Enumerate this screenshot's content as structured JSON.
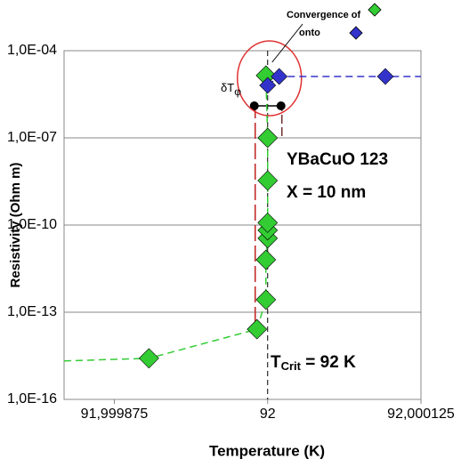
{
  "chart_data": {
    "type": "scatter",
    "xlabel": "Temperature (K)",
    "ylabel": "Resistivity (Ohm m)",
    "ylog": true,
    "grid": true,
    "xlim": [
      91.999834,
      92.000125
    ],
    "ylim": [
      1e-16,
      0.0001
    ],
    "xticks": [
      {
        "value": 91.999875,
        "label": "91,999875"
      },
      92,
      {
        "value": 92.000125,
        "label": "92,000125"
      }
    ],
    "yticks": [
      {
        "value": 1e-16,
        "label": "1,0E-16"
      },
      {
        "value": 1e-13,
        "label": "1,0E-13"
      },
      {
        "value": 1e-10,
        "label": "1,0E-10"
      },
      {
        "value": 1e-07,
        "label": "1,0E-07"
      },
      {
        "value": 0.0001,
        "label": "1,0E-04"
      }
    ],
    "series": [
      {
        "color": "#33cc33",
        "x": [
          91.9999032,
          91.9999913,
          91.9999986,
          91.9999986,
          92.0,
          92.0,
          92.0,
          92.0,
          92.0,
          91.9999986
        ],
        "values": [
          2.6e-15,
          2.6e-14,
          2.7e-13,
          6.4e-12,
          3.5e-11,
          6.6e-11,
          1.2e-10,
          3.4e-09,
          1e-07,
          1.4e-05
        ]
      },
      {
        "color": "#3333cc",
        "x": [
          92.0,
          92.0000094,
          92.000096
        ],
        "values": [
          6.4e-06,
          1.3e-05,
          1.3e-05
        ]
      }
    ],
    "annotations": {
      "convergence": "Convergence of",
      "onto": "onto",
      "material": "YBaCuO 123",
      "size": "X = 10 nm",
      "tcrit": [
        "T",
        "Crit",
        " = 92 K"
      ],
      "dt": [
        "δT",
        "φ"
      ]
    }
  }
}
